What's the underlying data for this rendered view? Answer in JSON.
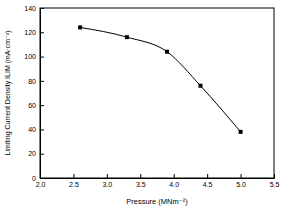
{
  "chart_data": {
    "type": "line",
    "x_label": "Pressure (MNm⁻²)",
    "y_label": "Limiting Current Density ILIM (mA·cm⁻²)",
    "x": [
      2.6,
      3.3,
      3.9,
      4.4,
      5.0
    ],
    "values": [
      124,
      116,
      104,
      76,
      38
    ],
    "color": "#000000",
    "marker": "square",
    "line_style": "solid",
    "xlim": [
      2.0,
      5.5
    ],
    "xticks": [
      {
        "value": 2.0,
        "label": "2.0"
      },
      2.5,
      {
        "value": 3.0,
        "label": "3.0"
      },
      3.5,
      {
        "value": 4.0,
        "label": "4.0"
      },
      4.5,
      {
        "value": 5.0,
        "label": "5.0"
      },
      5.5
    ],
    "ylim": [
      0,
      140
    ],
    "yticks": [
      0,
      20,
      40,
      60,
      80,
      100,
      120,
      140
    ],
    "grid": false
  }
}
